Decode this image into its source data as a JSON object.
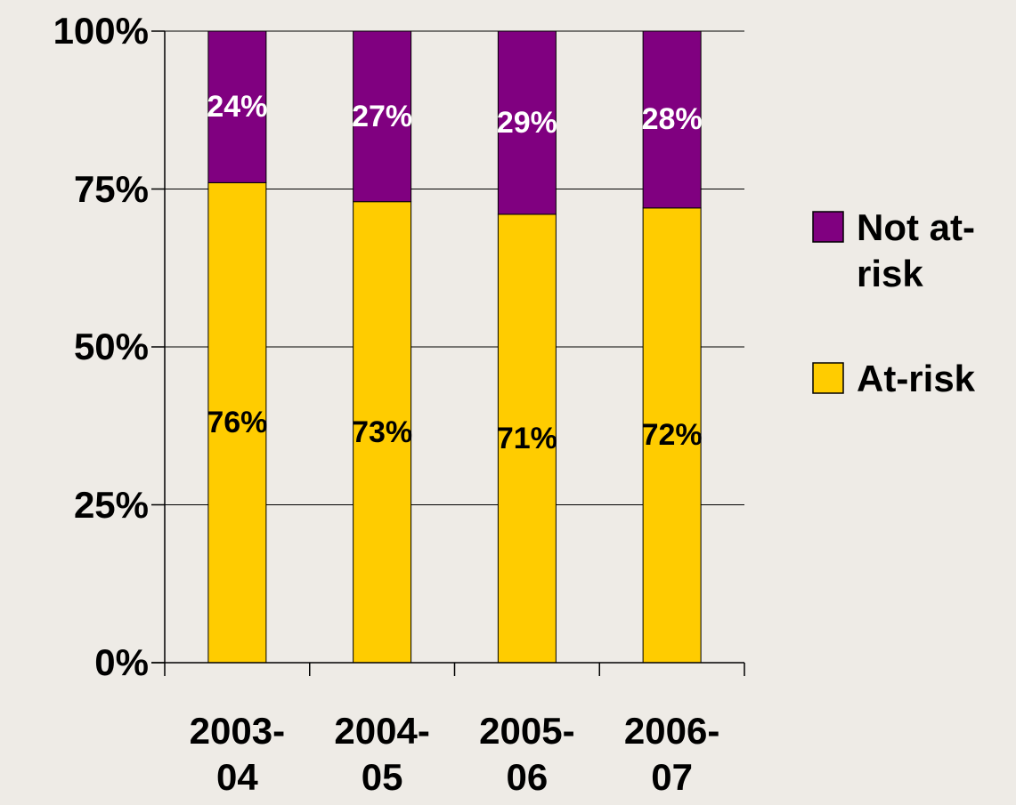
{
  "chart_data": {
    "type": "stacked_bar",
    "categories": [
      "2003-04",
      "2004-05",
      "2005-06",
      "2006-07"
    ],
    "series": [
      {
        "name": "At-risk",
        "color": "#ffcc00",
        "label_color": "#000000",
        "values": [
          76,
          73,
          71,
          72
        ],
        "value_labels": [
          "76%",
          "73%",
          "71%",
          "72%"
        ]
      },
      {
        "name": "Not at-risk",
        "color": "#800080",
        "label_color": "#ffffff",
        "values": [
          24,
          27,
          29,
          28
        ],
        "value_labels": [
          "24%",
          "27%",
          "29%",
          "28%"
        ]
      }
    ],
    "ylim": [
      0,
      100
    ],
    "yticks": [
      {
        "value": 0,
        "label": "0%"
      },
      {
        "value": 25,
        "label": "25%"
      },
      {
        "value": 50,
        "label": "50%"
      },
      {
        "value": 75,
        "label": "75%"
      },
      {
        "value": 100,
        "label": "100%"
      }
    ],
    "grid": true,
    "legend": "right"
  }
}
